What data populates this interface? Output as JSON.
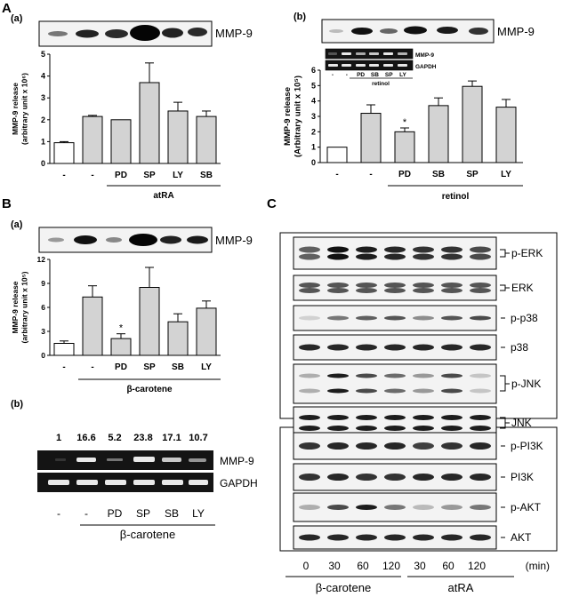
{
  "panel_letters": {
    "A": "A",
    "B": "B",
    "C": "C"
  },
  "sub_labels": {
    "a": "(a)",
    "b": "(b)"
  },
  "blot_label": "MMP-9",
  "chart_data": [
    {
      "id": "A_a",
      "type": "bar",
      "categories": [
        "-",
        "-",
        "PD",
        "SP",
        "LY",
        "SB"
      ],
      "values": [
        0.95,
        2.15,
        2.0,
        3.7,
        2.4,
        2.15
      ],
      "errors": [
        0.05,
        0.05,
        0.0,
        0.9,
        0.4,
        0.25
      ],
      "fills": [
        "#ffffff",
        "#d3d3d3",
        "#d3d3d3",
        "#d3d3d3",
        "#d3d3d3",
        "#d3d3d3"
      ],
      "ylabel_lines": [
        "MMP-9 release",
        "(arbitrary unit x 10⁶)"
      ],
      "ylim": [
        0,
        5
      ],
      "yticks": [
        0,
        1,
        2,
        3,
        4,
        5
      ],
      "ytick_labels": [
        "0",
        "1",
        "2",
        "3",
        "4",
        "5"
      ],
      "group_label": "atRA",
      "asterisks": []
    },
    {
      "id": "A_b",
      "type": "bar",
      "categories": [
        "-",
        "-",
        "PD",
        "SB",
        "SP",
        "LY"
      ],
      "values": [
        1.0,
        3.2,
        2.0,
        3.7,
        4.95,
        3.6
      ],
      "errors": [
        0.0,
        0.55,
        0.25,
        0.5,
        0.35,
        0.5
      ],
      "fills": [
        "#ffffff",
        "#d3d3d3",
        "#d3d3d3",
        "#d3d3d3",
        "#d3d3d3",
        "#d3d3d3"
      ],
      "ylabel_lines": [
        "MMP-9 release",
        "(Arbitrary unit x 10⁵)"
      ],
      "ylim": [
        0,
        6
      ],
      "yticks": [
        0,
        1,
        2,
        3,
        4,
        5,
        6
      ],
      "ytick_labels": [
        "0",
        "1",
        "2",
        "3",
        "4",
        "5",
        "6"
      ],
      "group_label": "retinol",
      "asterisks": [
        "",
        "",
        "*",
        "",
        "",
        ""
      ]
    },
    {
      "id": "B_a",
      "type": "bar",
      "categories": [
        "-",
        "-",
        "PD",
        "SP",
        "SB",
        "LY"
      ],
      "values": [
        1.5,
        7.3,
        2.1,
        8.5,
        4.2,
        5.9
      ],
      "errors": [
        0.3,
        1.4,
        0.6,
        2.5,
        1.0,
        0.9
      ],
      "fills": [
        "#ffffff",
        "#d3d3d3",
        "#d3d3d3",
        "#d3d3d3",
        "#d3d3d3",
        "#d3d3d3"
      ],
      "ylabel_lines": [
        "MMP-9 release",
        "(arbitrary unit x 10⁵)"
      ],
      "ylim": [
        0,
        12
      ],
      "yticks": [
        0,
        3,
        6,
        9,
        12
      ],
      "ytick_labels": [
        "0",
        "3",
        "6",
        "9",
        "12"
      ],
      "group_label": "β-carotene",
      "asterisks": [
        "",
        "",
        "*",
        "",
        "",
        ""
      ]
    }
  ],
  "A_b_inset": {
    "rows": [
      "MMP-9",
      "GAPDH"
    ],
    "lanes": [
      "-",
      "-",
      "PD",
      "SB",
      "SP",
      "LY"
    ],
    "group_label": "retinol"
  },
  "B_b": {
    "densitometry": [
      "1",
      "16.6",
      "5.2",
      "23.8",
      "17.1",
      "10.7"
    ],
    "rows": [
      "MMP-9",
      "GAPDH"
    ],
    "lanes": [
      "-",
      "-",
      "PD",
      "SP",
      "SB",
      "LY"
    ],
    "group_label": "β-carotene"
  },
  "C": {
    "rows": [
      "p-ERK",
      "ERK",
      "p-p38",
      "p38",
      "p-JNK",
      "JNK",
      "p-PI3K",
      "PI3K",
      "p-AKT",
      "AKT"
    ],
    "times": [
      "0",
      "30",
      "60",
      "120",
      "30",
      "60",
      "120"
    ],
    "time_unit": "(min)",
    "groups": [
      "β-carotene",
      "atRA"
    ]
  },
  "colors": {
    "bar_fill": "#d3d3d3",
    "control_fill": "#ffffff",
    "strip_bg": "#f3f3f3",
    "gel_bg": "#141414"
  }
}
